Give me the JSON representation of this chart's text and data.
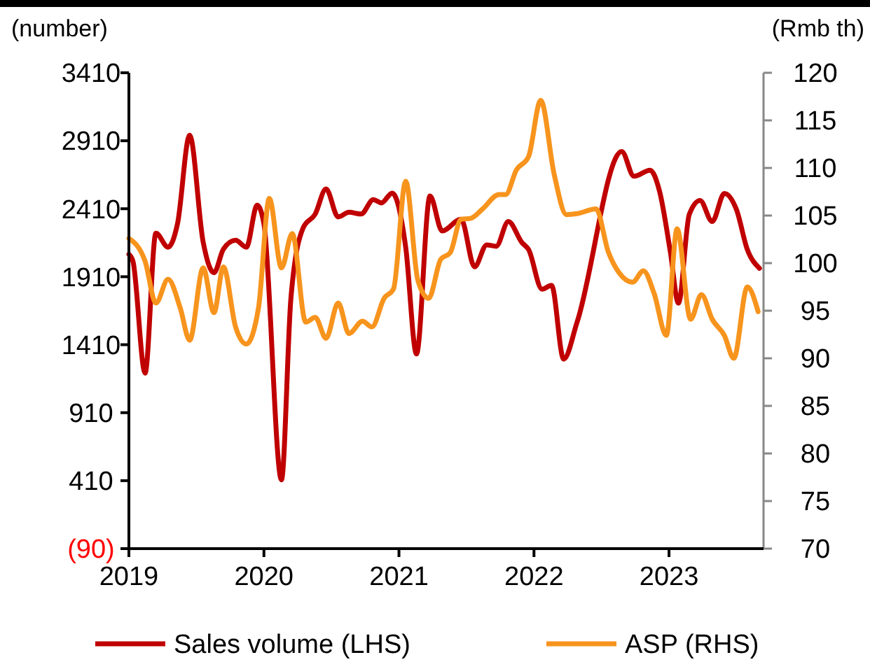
{
  "chart_data": {
    "type": "line",
    "ylabel": "(number)",
    "y2label": "(Rmb th)",
    "xlim": [
      2019,
      2023.7
    ],
    "xticks": [
      2019,
      2020,
      2021,
      2022,
      2023
    ],
    "ylim": [
      -90,
      3410
    ],
    "yticks": [
      {
        "value": -90,
        "label": "(90)"
      },
      410,
      910,
      1410,
      1910,
      2410,
      2910,
      3410
    ],
    "y2lim": [
      70,
      120
    ],
    "y2ticks": [
      70,
      75,
      80,
      85,
      90,
      95,
      100,
      105,
      110,
      115,
      120
    ],
    "legend": "bottom",
    "grid": false,
    "marker": "none",
    "line_style": "solid",
    "series": [
      {
        "name": "Sales volume (LHS)",
        "color": "#c00000",
        "x": [
          2019.0,
          2019.03,
          2019.12,
          2019.2,
          2019.29,
          2019.36,
          2019.45,
          2019.55,
          2019.63,
          2019.7,
          2019.79,
          2019.87,
          2019.95,
          2020.0,
          2020.13,
          2020.2,
          2020.29,
          2020.38,
          2020.46,
          2020.55,
          2020.63,
          2020.72,
          2020.81,
          2020.87,
          2020.95,
          2021.05,
          2021.13,
          2021.23,
          2021.32,
          2021.46,
          2021.56,
          2021.65,
          2021.72,
          2021.81,
          2021.91,
          2021.96,
          2022.06,
          2022.13,
          2022.22,
          2022.32,
          2022.65,
          2022.74,
          2022.86,
          2022.93,
          2023.01,
          2023.07,
          2023.15,
          2023.23,
          2023.32,
          2023.41,
          2023.5,
          2023.58,
          2023.67
        ],
        "values": [
          2075,
          2024,
          1201,
          2230,
          2127,
          2299,
          2950,
          2165,
          1939,
          2113,
          2178,
          2127,
          2436,
          2299,
          416,
          1753,
          2268,
          2371,
          2556,
          2350,
          2384,
          2371,
          2477,
          2453,
          2525,
          2127,
          1342,
          2504,
          2247,
          2333,
          1983,
          2144,
          2134,
          2316,
          2162,
          2110,
          1818,
          1846,
          1304,
          1578,
          2831,
          2649,
          2693,
          2538,
          2093,
          1715,
          2368,
          2471,
          2316,
          2522,
          2402,
          2110,
          1972
        ]
      },
      {
        "name": "ASP (RHS)",
        "color": "#f7941d",
        "axis": "y2",
        "x": [
          2019.0,
          2019.12,
          2019.2,
          2019.29,
          2019.38,
          2019.45,
          2019.55,
          2019.63,
          2019.7,
          2019.79,
          2019.87,
          2019.96,
          2020.04,
          2020.13,
          2020.21,
          2020.31,
          2020.38,
          2020.46,
          2020.55,
          2020.63,
          2020.73,
          2020.8,
          2020.89,
          2020.96,
          2021.05,
          2021.14,
          2021.22,
          2021.31,
          2021.38,
          2021.46,
          2021.53,
          2021.62,
          2021.74,
          2021.79,
          2021.87,
          2021.96,
          2022.05,
          2022.15,
          2022.24,
          2022.32,
          2022.46,
          2022.55,
          2022.63,
          2022.73,
          2022.81,
          2022.89,
          2022.98,
          2023.06,
          2023.16,
          2023.24,
          2023.32,
          2023.41,
          2023.48,
          2023.58,
          2023.66
        ],
        "values": [
          102.6,
          100.2,
          95.8,
          98.3,
          95.3,
          91.9,
          99.5,
          94.8,
          99.6,
          93.3,
          91.5,
          95.3,
          106.8,
          99.5,
          103.1,
          93.8,
          94.3,
          92.1,
          95.8,
          92.6,
          93.9,
          93.3,
          96.3,
          97.3,
          108.6,
          98.2,
          96.3,
          100.4,
          101.1,
          104.6,
          104.7,
          105.7,
          107.2,
          107.2,
          109.8,
          111.2,
          117.1,
          109.3,
          105.1,
          105.2,
          105.7,
          101.2,
          99.0,
          98.0,
          99.2,
          96.8,
          92.4,
          103.6,
          94.1,
          96.7,
          94.1,
          92.4,
          90.0,
          97.5,
          94.9
        ]
      }
    ]
  }
}
